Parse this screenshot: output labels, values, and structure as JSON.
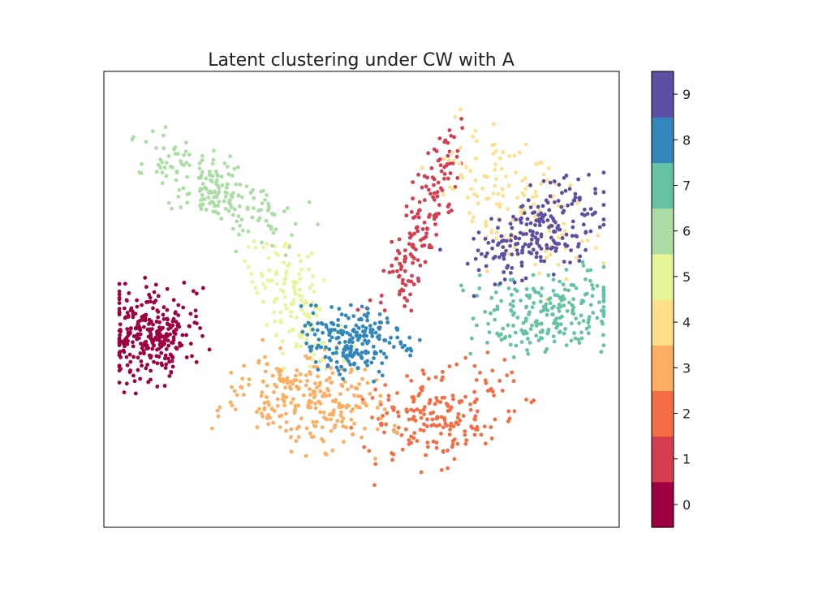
{
  "chart_data": {
    "type": "scatter",
    "title": "Latent clustering under CW with A",
    "xlabel": "",
    "ylabel": "",
    "axes_ticks_visible": false,
    "grid": false,
    "colorbar": {
      "position": "right",
      "ticks": [
        "0",
        "1",
        "2",
        "3",
        "4",
        "5",
        "6",
        "7",
        "8",
        "9"
      ],
      "colormap": "Spectral (discrete, 10 levels)",
      "colors": [
        "#9e0142",
        "#d53e4f",
        "#f46d43",
        "#fdae61",
        "#fee08b",
        "#e6f598",
        "#abdda4",
        "#66c2a5",
        "#3288bd",
        "#5e4fa2"
      ]
    },
    "clusters": [
      {
        "label": "0",
        "center": [
          0.095,
          0.42
        ],
        "approx_points": 300
      },
      {
        "label": "1",
        "center": [
          0.615,
          0.66
        ],
        "approx_points": 160
      },
      {
        "label": "2",
        "center": [
          0.655,
          0.25
        ],
        "approx_points": 210
      },
      {
        "label": "3",
        "center": [
          0.395,
          0.28
        ],
        "approx_points": 260
      },
      {
        "label": "4",
        "center": [
          0.795,
          0.71
        ],
        "approx_points": 140
      },
      {
        "label": "5",
        "center": [
          0.375,
          0.48
        ],
        "approx_points": 140
      },
      {
        "label": "6",
        "center": [
          0.215,
          0.74
        ],
        "approx_points": 200
      },
      {
        "label": "7",
        "center": [
          0.865,
          0.47
        ],
        "approx_points": 230
      },
      {
        "label": "8",
        "center": [
          0.485,
          0.41
        ],
        "approx_points": 210
      },
      {
        "label": "9",
        "center": [
          0.845,
          0.65
        ],
        "approx_points": 220
      }
    ]
  }
}
